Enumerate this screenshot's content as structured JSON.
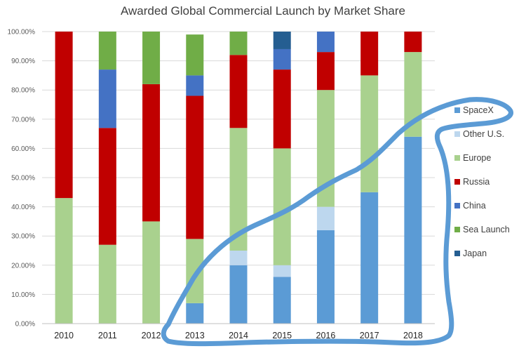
{
  "chart_data": {
    "type": "bar",
    "stacked": true,
    "title": "Awarded Global Commercial Launch by Market Share",
    "categories": [
      "2010",
      "2011",
      "2012",
      "2013",
      "2014",
      "2015",
      "2016",
      "2017",
      "2018"
    ],
    "ylim": [
      0,
      100
    ],
    "yticks": [
      "0.00%",
      "10.00%",
      "20.00%",
      "30.00%",
      "40.00%",
      "50.00%",
      "60.00%",
      "70.00%",
      "80.00%",
      "90.00%",
      "100.00%"
    ],
    "grid": true,
    "legend_position": "right",
    "series": [
      {
        "name": "SpaceX",
        "color": "#5b9bd5",
        "values": [
          0,
          0,
          0,
          7,
          20,
          16,
          32,
          45,
          64
        ]
      },
      {
        "name": "Other U.S.",
        "color": "#bdd7ee",
        "values": [
          0,
          0,
          0,
          0,
          5,
          4,
          8,
          0,
          0
        ]
      },
      {
        "name": "Europe",
        "color": "#a9d18e",
        "values": [
          43,
          27,
          35,
          22,
          42,
          40,
          40,
          40,
          29
        ]
      },
      {
        "name": "Russia",
        "color": "#c00000",
        "values": [
          57,
          40,
          47,
          49,
          25,
          27,
          13,
          15,
          7
        ]
      },
      {
        "name": "China",
        "color": "#4472c4",
        "values": [
          0,
          20,
          0,
          7,
          0,
          7,
          7,
          0,
          0
        ]
      },
      {
        "name": "Sea Launch",
        "color": "#70ad47",
        "values": [
          0,
          13,
          18,
          14,
          8,
          0,
          0,
          0,
          0
        ]
      },
      {
        "name": "Japan",
        "color": "#255e91",
        "values": [
          0,
          0,
          0,
          0,
          0,
          6,
          0,
          0,
          0
        ]
      }
    ],
    "annotation": {
      "type": "hand-drawn outline",
      "color": "#5b9bd5"
    }
  }
}
